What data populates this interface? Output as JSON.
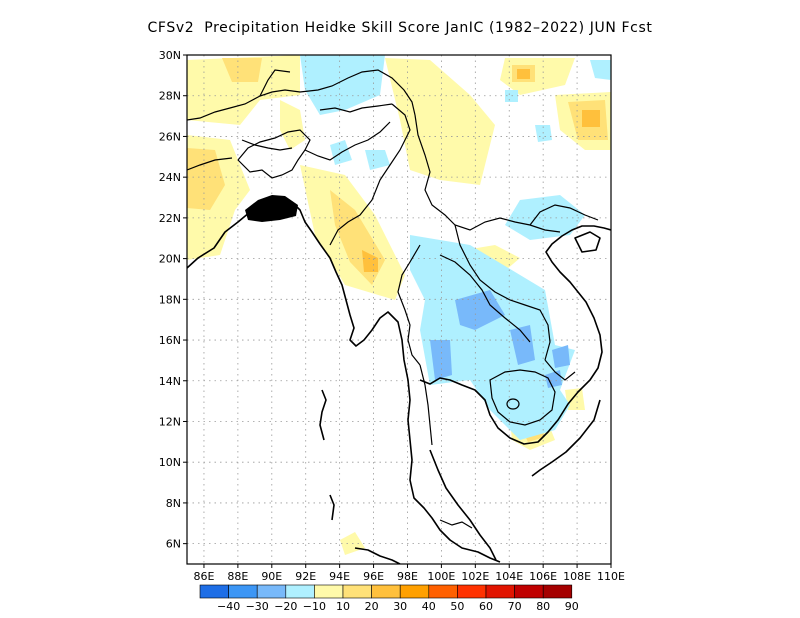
{
  "title": "CFSv2  Precipitation Heidke Skill Score JanIC (1982–2022) JUN Fcst",
  "axes": {
    "lat_ticks": [
      "30N",
      "28N",
      "26N",
      "24N",
      "22N",
      "20N",
      "18N",
      "16N",
      "14N",
      "12N",
      "10N",
      "8N",
      "6N"
    ],
    "lon_ticks": [
      "86E",
      "88E",
      "90E",
      "92E",
      "94E",
      "96E",
      "98E",
      "100E",
      "102E",
      "104E",
      "106E",
      "108E",
      "110E"
    ]
  },
  "colorbar": {
    "colors": [
      "#1e6ee6",
      "#3c96f5",
      "#78b9fa",
      "#aff0ff",
      "#fffaaa",
      "#ffe178",
      "#ffc03c",
      "#ffa000",
      "#ff6000",
      "#ff3200",
      "#e11400",
      "#c00000",
      "#a50000"
    ],
    "labels": [
      "−40",
      "−30",
      "−20",
      "−10",
      "10",
      "20",
      "30",
      "40",
      "50",
      "60",
      "70",
      "80",
      "90"
    ]
  },
  "legend_colors": {
    "pos10": "#fffaaa",
    "pos20": "#ffe178",
    "pos30": "#ffc03c",
    "pos40": "#ffa000",
    "neg10": "#aff0ff",
    "neg20": "#78b9fa",
    "neg30": "#3c96f5"
  }
}
